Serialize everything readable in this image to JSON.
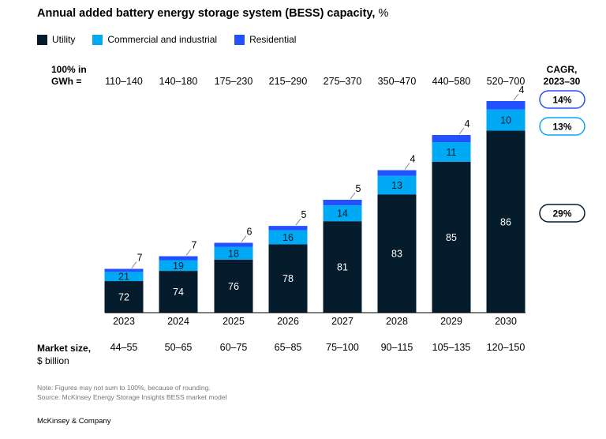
{
  "title": "Annual added battery energy storage system (BESS) capacity,",
  "title_unit": "%",
  "legend": [
    {
      "label": "Utility",
      "color": "#051C2C"
    },
    {
      "label": "Commercial and industrial",
      "color": "#00A9F4"
    },
    {
      "label": "Residential",
      "color": "#2251FF"
    }
  ],
  "header_left_line1": "100% in",
  "header_left_line2": "GWh =",
  "header_right_line1": "CAGR,",
  "header_right_line2": "2023–30",
  "gwh_ranges": [
    "110–140",
    "140–180",
    "175–230",
    "215–290",
    "275–370",
    "350–470",
    "440–580",
    "520–700"
  ],
  "market_label_line1": "Market size,",
  "market_label_line2": "$ billion",
  "market_sizes": [
    "44–55",
    "50–65",
    "60–75",
    "65–85",
    "75–100",
    "90–115",
    "105–135",
    "120–150"
  ],
  "note": "Note: Figures may not sum to 100%, because of rounding.",
  "source": "Source: McKinsey Energy Storage Insights BESS market model",
  "brand": "McKinsey & Company",
  "chart_data": {
    "type": "bar",
    "stacked": true,
    "categories": [
      "2023",
      "2024",
      "2025",
      "2026",
      "2027",
      "2028",
      "2029",
      "2030"
    ],
    "series": [
      {
        "name": "Utility",
        "values": [
          72,
          74,
          76,
          78,
          81,
          83,
          85,
          86
        ]
      },
      {
        "name": "Commercial and industrial",
        "values": [
          21,
          19,
          18,
          16,
          14,
          13,
          11,
          10
        ]
      },
      {
        "name": "Residential",
        "values": [
          7,
          7,
          6,
          5,
          5,
          4,
          4,
          4
        ]
      }
    ],
    "cagr": [
      {
        "series": "Residential",
        "value": "14%"
      },
      {
        "series": "Commercial and industrial",
        "value": "13%"
      },
      {
        "series": "Utility",
        "value": "29%"
      }
    ],
    "grid": false,
    "legend_position": "top-left"
  }
}
